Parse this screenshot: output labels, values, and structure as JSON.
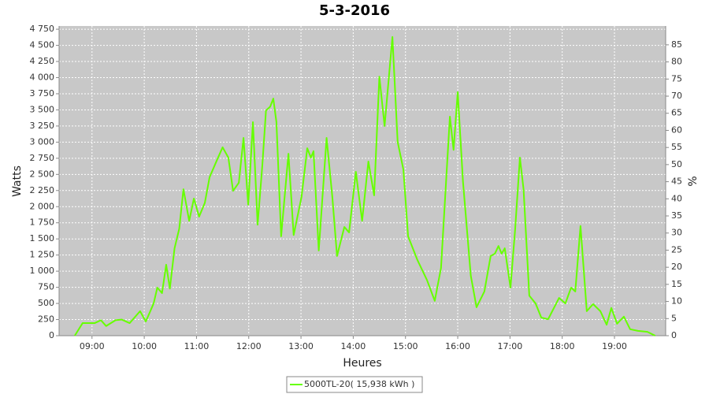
{
  "chart_data": {
    "type": "line",
    "title": "5-3-2016",
    "x_label": "Heures",
    "y_label": "Watts",
    "y2_label": "%",
    "x": [
      8.67,
      8.82,
      9.05,
      9.17,
      9.27,
      9.45,
      9.57,
      9.72,
      9.92,
      10.03,
      10.18,
      10.25,
      10.34,
      10.42,
      10.49,
      10.58,
      10.67,
      10.75,
      10.86,
      10.95,
      11.05,
      11.16,
      11.25,
      11.38,
      11.5,
      11.61,
      11.7,
      11.81,
      11.9,
      11.99,
      12.08,
      12.17,
      12.26,
      12.33,
      12.41,
      12.47,
      12.53,
      12.62,
      12.76,
      12.86,
      13.01,
      13.12,
      13.19,
      13.24,
      13.34,
      13.49,
      13.6,
      13.69,
      13.83,
      13.92,
      14.05,
      14.17,
      14.29,
      14.4,
      14.5,
      14.6,
      14.75,
      14.85,
      14.96,
      15.05,
      15.23,
      15.41,
      15.56,
      15.68,
      15.85,
      15.92,
      16.0,
      16.1,
      16.25,
      16.36,
      16.51,
      16.63,
      16.71,
      16.78,
      16.84,
      16.9,
      17.01,
      17.1,
      17.19,
      17.26,
      17.37,
      17.49,
      17.6,
      17.73,
      17.94,
      18.06,
      18.17,
      18.25,
      18.35,
      18.47,
      18.59,
      18.73,
      18.85,
      18.94,
      19.05,
      19.18,
      19.3,
      19.45,
      19.63,
      19.78
    ],
    "series": [
      {
        "name": "5000TL-20( 15,938 kWh )",
        "color": "#66ff00",
        "values": [
          0,
          195,
          195,
          240,
          150,
          240,
          250,
          195,
          380,
          220,
          500,
          745,
          660,
          1100,
          730,
          1355,
          1660,
          2270,
          1780,
          2125,
          1845,
          2060,
          2455,
          2700,
          2920,
          2760,
          2245,
          2370,
          3065,
          2030,
          3310,
          1720,
          2640,
          3490,
          3550,
          3675,
          3310,
          1540,
          2820,
          1560,
          2150,
          2905,
          2760,
          2860,
          1320,
          3065,
          2150,
          1235,
          1685,
          1600,
          2540,
          1780,
          2700,
          2175,
          4015,
          3250,
          4630,
          3005,
          2575,
          1540,
          1170,
          865,
          540,
          1050,
          3395,
          2880,
          3775,
          2395,
          930,
          440,
          685,
          1235,
          1270,
          1390,
          1270,
          1355,
          745,
          1660,
          2760,
          2270,
          620,
          500,
          280,
          255,
          585,
          500,
          745,
          685,
          1700,
          380,
          490,
          380,
          170,
          430,
          185,
          295,
          100,
          75,
          60,
          0
        ]
      }
    ],
    "xlim": [
      8.37,
      19.98
    ],
    "xticks": [
      {
        "value": 9,
        "label": "09:00"
      },
      {
        "value": 10,
        "label": "10:00"
      },
      {
        "value": 11,
        "label": "11:00"
      },
      {
        "value": 12,
        "label": "12:00"
      },
      {
        "value": 13,
        "label": "13:00"
      },
      {
        "value": 14,
        "label": "14:00"
      },
      {
        "value": 15,
        "label": "15:00"
      },
      {
        "value": 16,
        "label": "16:00"
      },
      {
        "value": 17,
        "label": "17:00"
      },
      {
        "value": 18,
        "label": "18:00"
      },
      {
        "value": 19,
        "label": "19:00"
      }
    ],
    "ylim": [
      0,
      4800
    ],
    "yticks": [
      0,
      250,
      500,
      750,
      {
        "value": 1000,
        "label": "1 000"
      },
      {
        "value": 1250,
        "label": "1 250"
      },
      {
        "value": 1500,
        "label": "1 500"
      },
      {
        "value": 1750,
        "label": "1 750"
      },
      {
        "value": 2000,
        "label": "2 000"
      },
      {
        "value": 2250,
        "label": "2 250"
      },
      {
        "value": 2500,
        "label": "2 500"
      },
      {
        "value": 2750,
        "label": "2 750"
      },
      {
        "value": 3000,
        "label": "3 000"
      },
      {
        "value": 3250,
        "label": "3 250"
      },
      {
        "value": 3500,
        "label": "3 500"
      },
      {
        "value": 3750,
        "label": "3 750"
      },
      {
        "value": 4000,
        "label": "4 000"
      },
      {
        "value": 4250,
        "label": "4 250"
      },
      {
        "value": 4500,
        "label": "4 500"
      },
      {
        "value": 4750,
        "label": "4 750"
      }
    ],
    "y2lim": [
      0,
      90.5
    ],
    "y2ticks": [
      0,
      5,
      10,
      15,
      20,
      25,
      30,
      35,
      40,
      45,
      50,
      55,
      60,
      65,
      70,
      75,
      80,
      85
    ],
    "grid": true,
    "legend": "bottom"
  }
}
